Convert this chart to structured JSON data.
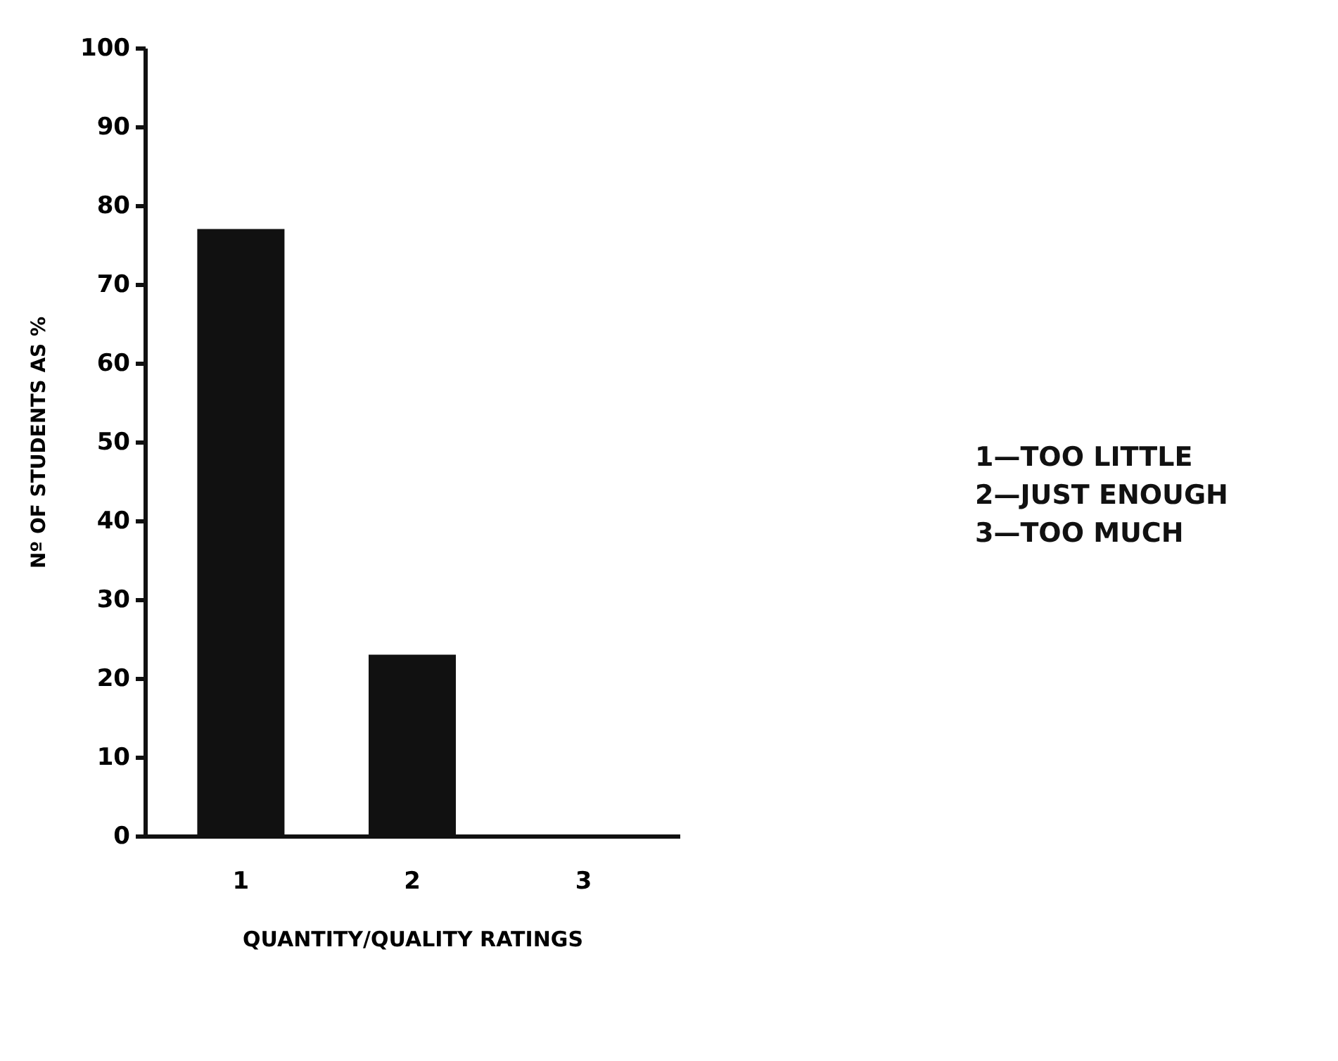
{
  "chart_data": {
    "type": "bar",
    "xlabel": "QUANTITY/QUALITY RATINGS",
    "ylabel": "Nº OF STUDENTS AS %",
    "categories": [
      "1",
      "2",
      "3"
    ],
    "values": [
      77,
      23,
      0
    ],
    "color": "#111111",
    "ylim": [
      0,
      100
    ],
    "yticks": [
      0,
      10,
      20,
      30,
      40,
      50,
      60,
      70,
      80,
      90,
      100
    ],
    "grid": false,
    "annotations": [
      "1—TOO LITTLE",
      "2—JUST ENOUGH",
      "3—TOO MUCH"
    ]
  }
}
